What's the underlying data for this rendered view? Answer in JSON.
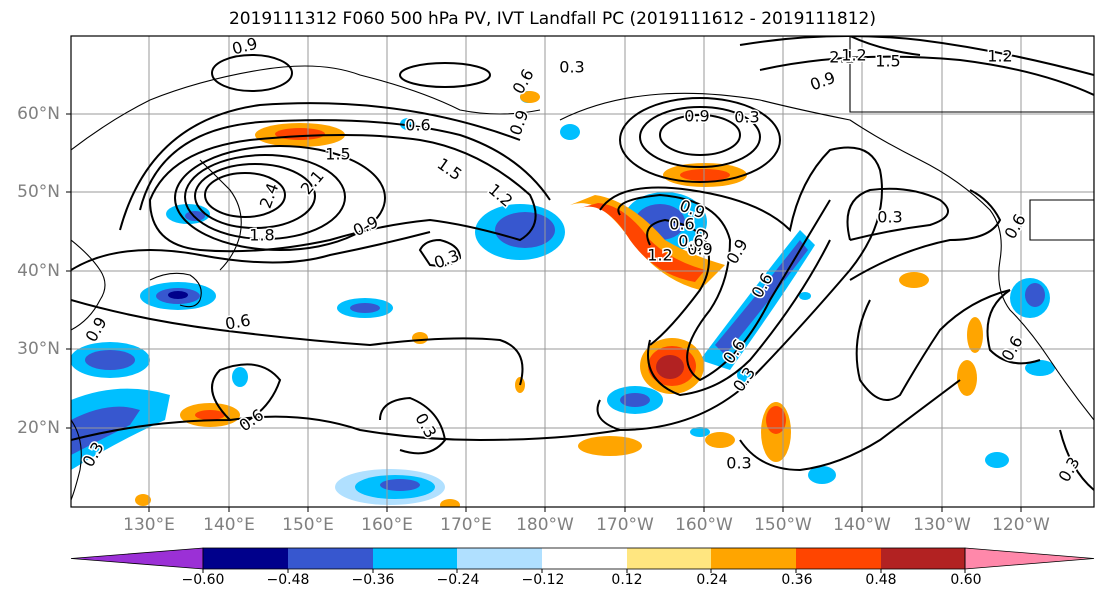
{
  "title": "2019111312 F060 500 hPa PV, IVT Landfall PC (2019111612 - 2019111812)",
  "map": {
    "projection": "PlateCarree",
    "extent": {
      "lon_min": 120,
      "lon_max": 249,
      "lat_min": 10,
      "lat_max": 70
    },
    "latitude_labels": [
      "60°N",
      "50°N",
      "40°N",
      "30°N",
      "20°N"
    ],
    "longitude_labels": [
      "130°E",
      "140°E",
      "150°E",
      "160°E",
      "170°E",
      "180°W",
      "170°W",
      "160°W",
      "150°W",
      "140°W",
      "130°W",
      "120°W"
    ],
    "gridlines": true,
    "contour_labels": [
      "0.9",
      "0.3",
      "1.2",
      "0.6",
      "0.9",
      "0.3",
      "2.1",
      "1.5",
      "1.2",
      "0.9",
      "0.6",
      "0.9",
      "1.5",
      "2.1",
      "2.4",
      "1.8",
      "1.5",
      "1.2",
      "0.9",
      "0.3",
      "0.6",
      "0.9",
      "0.6",
      "0.3",
      "0.6",
      "1.2",
      "0.9",
      "0.6",
      "0.9",
      "0.3",
      "0.6",
      "0.3",
      "0.3",
      "0.6",
      "0.3",
      "0.6",
      "0.3",
      "0.9",
      "0.9",
      "0.6"
    ]
  },
  "colorbar": {
    "orientation": "horizontal",
    "extend": "both",
    "tick_labels": [
      "−0.60",
      "−0.48",
      "−0.36",
      "−0.24",
      "−0.12",
      "0.12",
      "0.24",
      "0.36",
      "0.48",
      "0.60"
    ],
    "colors": [
      "#9b30d6",
      "#00008b",
      "#3757cf",
      "#00bfff",
      "#b0e0ff",
      "#ffffff",
      "#ffe680",
      "#ffa500",
      "#ff4500",
      "#b22222",
      "#ff88aa"
    ]
  },
  "colors": {
    "land_outline": "#000000",
    "grid": "#999999",
    "contour": "#000000",
    "label_gray": "#808080"
  }
}
